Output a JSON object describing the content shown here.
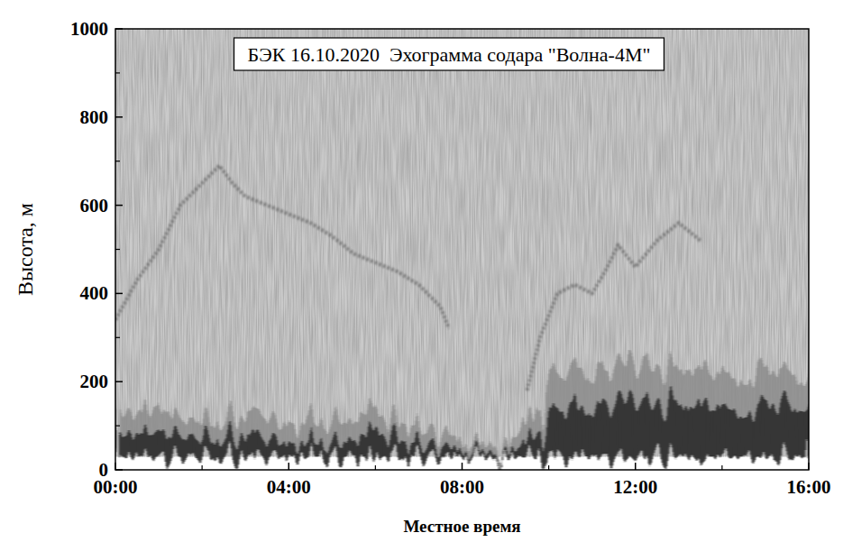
{
  "chart_data": {
    "type": "echogram",
    "title": "БЭК 16.10.2020  Эхограмма содара \"Волна-4М\"",
    "x_label": "Местное время",
    "y_label": "Высота, м",
    "xlim": [
      0,
      16
    ],
    "xticks": [
      {
        "value": 0,
        "label": "00:00"
      },
      {
        "value": 4,
        "label": "04:00"
      },
      {
        "value": 8,
        "label": "08:00"
      },
      {
        "value": 12,
        "label": "12:00"
      },
      {
        "value": 16,
        "label": "16:00"
      }
    ],
    "ylim": [
      0,
      1000
    ],
    "yticks": [
      0,
      200,
      400,
      600,
      800,
      1000
    ],
    "series": [
      {
        "type": "area",
        "color": "#8c8c8c",
        "base": 30,
        "x": [
          0,
          0.5,
          1,
          1.5,
          2,
          2.5,
          3,
          3.5,
          4,
          4.5,
          5,
          5.5,
          6,
          6.5,
          7,
          7.5,
          8,
          8.5,
          9,
          9.5,
          10,
          10.5,
          11,
          11.5,
          12,
          12.5,
          13,
          13.5,
          14,
          14.5,
          15,
          15.5,
          16
        ],
        "values": [
          150,
          130,
          150,
          120,
          110,
          110,
          130,
          120,
          100,
          110,
          110,
          120,
          140,
          110,
          100,
          90,
          60,
          55,
          50,
          110,
          200,
          220,
          210,
          230,
          240,
          230,
          220,
          230,
          220,
          210,
          220,
          230,
          210
        ]
      },
      {
        "type": "area",
        "color": "#262626",
        "base": 30,
        "x": [
          0,
          0.5,
          1,
          1.5,
          2,
          2.5,
          3,
          3.5,
          4,
          4.5,
          5,
          5.5,
          6,
          6.5,
          7,
          7.5,
          8,
          8.5,
          9,
          9.5,
          10,
          10.5,
          11,
          11.5,
          12,
          12.5,
          13,
          13.5,
          14,
          14.5,
          15,
          15.5,
          16
        ],
        "values": [
          90,
          80,
          90,
          80,
          70,
          70,
          80,
          70,
          60,
          60,
          60,
          70,
          90,
          70,
          60,
          55,
          40,
          40,
          35,
          60,
          120,
          140,
          130,
          150,
          160,
          150,
          140,
          150,
          140,
          130,
          140,
          150,
          140
        ]
      },
      {
        "type": "line",
        "color": "#5e5e5e",
        "line_style": "dotted",
        "x": [
          0,
          0.5,
          1,
          1.5,
          2,
          2.4,
          2.7,
          3,
          3.5,
          4,
          4.5,
          5,
          5.5,
          6,
          6.5,
          7,
          7.5,
          7.7,
          8.6,
          9.5,
          9.8,
          10.2,
          10.6,
          11,
          11.3,
          11.6,
          12,
          12.5,
          13,
          13.5
        ],
        "values": [
          340,
          430,
          500,
          600,
          650,
          690,
          650,
          620,
          600,
          580,
          560,
          530,
          490,
          470,
          450,
          420,
          370,
          320,
          null,
          180,
          300,
          400,
          420,
          400,
          450,
          510,
          460,
          520,
          560,
          520
        ]
      }
    ]
  }
}
